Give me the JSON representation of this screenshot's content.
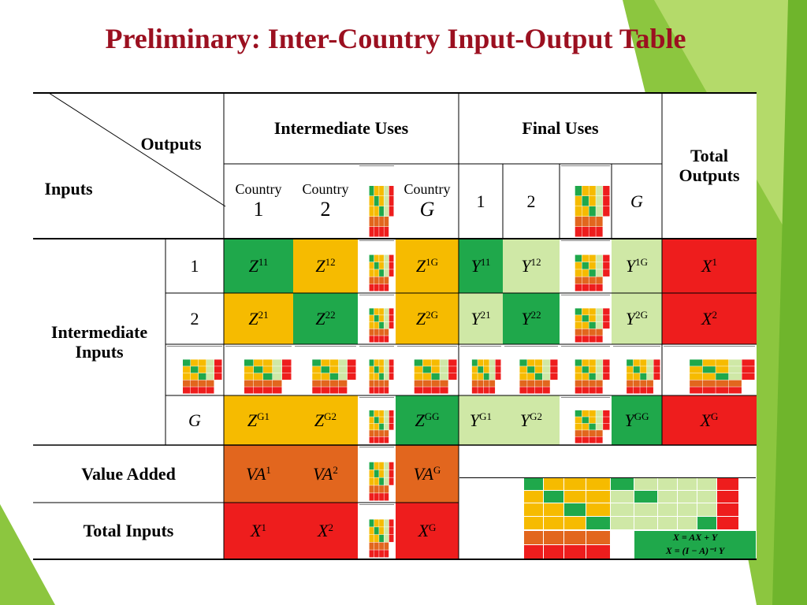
{
  "title": "Preliminary: Inter-Country Input-Output Table",
  "header": {
    "outputs": "Outputs",
    "inputs": "Inputs",
    "intermediate_uses": "Intermediate Uses",
    "final_uses": "Final Uses",
    "total_outputs": "Total Outputs"
  },
  "intermediate_columns": [
    {
      "label": "Country",
      "id": "1"
    },
    {
      "label": "Country",
      "id": "2"
    },
    {
      "label": "Country",
      "id": "G"
    }
  ],
  "final_columns": [
    "1",
    "2",
    "G"
  ],
  "row_groups": {
    "intermediate_inputs": "Intermediate Inputs",
    "value_added": "Value Added",
    "total_inputs": "Total Inputs"
  },
  "row_ids": [
    "1",
    "2",
    "G"
  ],
  "rows": [
    [
      {
        "base": "Z",
        "sup": "11",
        "color": "#1fa84b"
      },
      {
        "base": "Z",
        "sup": "12",
        "color": "#f6bb00"
      },
      {
        "base": "Z",
        "sup": "1G",
        "color": "#f6bb00"
      },
      {
        "base": "Y",
        "sup": "11",
        "color": "#1fa84b"
      },
      {
        "base": "Y",
        "sup": "12",
        "color": "#cfe8a6"
      },
      {
        "base": "Y",
        "sup": "1G",
        "color": "#cfe8a6"
      },
      {
        "base": "X",
        "sup": "1",
        "color": "#ee1d1d"
      }
    ],
    [
      {
        "base": "Z",
        "sup": "21",
        "color": "#f6bb00"
      },
      {
        "base": "Z",
        "sup": "22",
        "color": "#1fa84b"
      },
      {
        "base": "Z",
        "sup": "2G",
        "color": "#f6bb00"
      },
      {
        "base": "Y",
        "sup": "21",
        "color": "#cfe8a6"
      },
      {
        "base": "Y",
        "sup": "22",
        "color": "#1fa84b"
      },
      {
        "base": "Y",
        "sup": "2G",
        "color": "#cfe8a6"
      },
      {
        "base": "X",
        "sup": "2",
        "color": "#ee1d1d"
      }
    ],
    [
      {
        "base": "Z",
        "sup": "G1",
        "color": "#f6bb00"
      },
      {
        "base": "Z",
        "sup": "G2",
        "color": "#f6bb00"
      },
      {
        "base": "Z",
        "sup": "GG",
        "color": "#1fa84b"
      },
      {
        "base": "Y",
        "sup": "G1",
        "color": "#cfe8a6"
      },
      {
        "base": "Y",
        "sup": "G2",
        "color": "#cfe8a6"
      },
      {
        "base": "Y",
        "sup": "GG",
        "color": "#1fa84b"
      },
      {
        "base": "X",
        "sup": "G",
        "color": "#ee1d1d"
      }
    ]
  ],
  "value_added": [
    {
      "base": "VA",
      "sup": "1",
      "color": "#e2661e"
    },
    {
      "base": "VA",
      "sup": "2",
      "color": "#e2661e"
    },
    {
      "base": "VA",
      "sup": "G",
      "color": "#e2661e"
    }
  ],
  "total_inputs": [
    {
      "base": "X",
      "sup": "1",
      "color": "#ee1d1d"
    },
    {
      "base": "X",
      "sup": "2",
      "color": "#ee1d1d"
    },
    {
      "base": "X",
      "sup": "G",
      "color": "#ee1d1d"
    }
  ],
  "inset": {
    "equations": [
      "X = AX + Y",
      "X = (I − A)⁻¹ Y"
    ]
  }
}
